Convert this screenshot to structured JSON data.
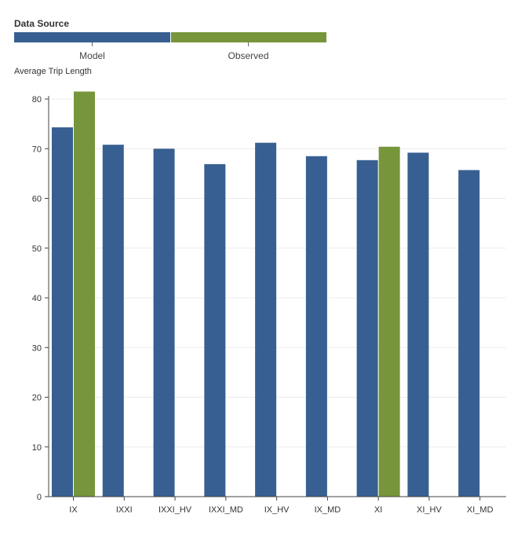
{
  "chart_data": {
    "type": "bar",
    "legend": {
      "title": "Data Source",
      "placement": "top-left",
      "entries": [
        {
          "name": "Model",
          "color": "#375f91"
        },
        {
          "name": "Observed",
          "color": "#77953a"
        }
      ]
    },
    "ylabel": "Average Trip Length",
    "xlabel": "",
    "ylim": [
      0,
      80
    ],
    "yticks": [
      0,
      10,
      20,
      30,
      40,
      50,
      60,
      70,
      80
    ],
    "grid": true,
    "categories": [
      "IX",
      "IXXI",
      "IXXI_HV",
      "IXXI_MD",
      "IX_HV",
      "IX_MD",
      "XI",
      "XI_HV",
      "XI_MD"
    ],
    "series": [
      {
        "name": "Model",
        "color": "#375f91",
        "values": [
          74.3,
          70.8,
          70.0,
          66.9,
          71.2,
          68.5,
          67.7,
          69.2,
          65.7
        ]
      },
      {
        "name": "Observed",
        "color": "#77953a",
        "values": [
          81.5,
          null,
          null,
          null,
          null,
          null,
          70.4,
          null,
          null
        ]
      }
    ]
  }
}
